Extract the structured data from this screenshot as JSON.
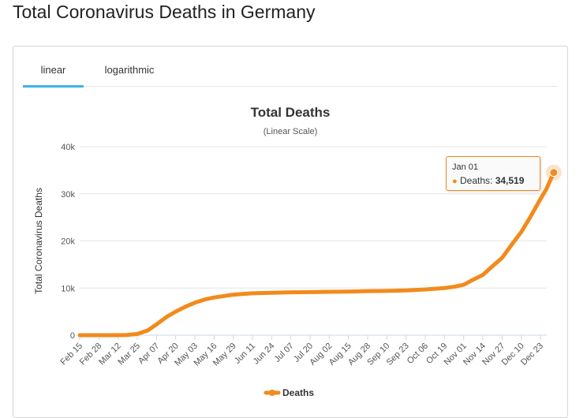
{
  "page": {
    "title": "Total Coronavirus Deaths in Germany"
  },
  "tabs": [
    {
      "label": "linear",
      "active": true
    },
    {
      "label": "logarithmic",
      "active": false
    }
  ],
  "colors": {
    "series": "#f28a1c",
    "tab_active": "#3cb4e7",
    "grid": "#e6e6e6"
  },
  "tooltip": {
    "date": "Jan 01",
    "series_label": "Deaths:",
    "value": "34,519"
  },
  "chart_data": {
    "type": "line",
    "title": "Total Deaths",
    "subtitle": "(Linear Scale)",
    "xlabel": "",
    "ylabel": "Total Coronavirus Deaths",
    "ylim": [
      0,
      40000
    ],
    "yticks": [
      0,
      10000,
      20000,
      30000,
      40000
    ],
    "ytick_labels": [
      "0",
      "10k",
      "20k",
      "30k",
      "40k"
    ],
    "grid": true,
    "legend": "bottom-center",
    "xtick_labels": [
      "Feb 15",
      "Feb 28",
      "Mar 12",
      "Mar 25",
      "Apr 07",
      "Apr 20",
      "May 03",
      "May 16",
      "May 29",
      "Jun 11",
      "Jun 24",
      "Jul 07",
      "Jul 20",
      "Aug 02",
      "Aug 15",
      "Aug 28",
      "Sep 10",
      "Sep 23",
      "Oct 06",
      "Oct 19",
      "Nov 01",
      "Nov 14",
      "Nov 27",
      "Dec 10",
      "Dec 23"
    ],
    "series": [
      {
        "name": "Deaths",
        "x": [
          "Feb 15",
          "Feb 28",
          "Mar 12",
          "Mar 18",
          "Mar 25",
          "Apr 01",
          "Apr 07",
          "Apr 14",
          "Apr 20",
          "Apr 27",
          "May 03",
          "May 10",
          "May 16",
          "May 29",
          "Jun 11",
          "Jun 24",
          "Jul 07",
          "Jul 20",
          "Aug 02",
          "Aug 15",
          "Aug 28",
          "Sep 10",
          "Sep 23",
          "Oct 06",
          "Oct 19",
          "Oct 26",
          "Nov 01",
          "Nov 07",
          "Nov 14",
          "Nov 20",
          "Nov 27",
          "Dec 03",
          "Dec 10",
          "Dec 16",
          "Dec 23",
          "Dec 27",
          "Jan 01"
        ],
        "values": [
          0,
          0,
          5,
          50,
          250,
          1000,
          2300,
          3900,
          5000,
          6100,
          6900,
          7600,
          8000,
          8600,
          8900,
          9000,
          9100,
          9150,
          9200,
          9250,
          9350,
          9400,
          9500,
          9700,
          10000,
          10300,
          10700,
          11700,
          12800,
          14500,
          16400,
          19000,
          21900,
          25000,
          28900,
          31000,
          34519
        ]
      }
    ]
  }
}
